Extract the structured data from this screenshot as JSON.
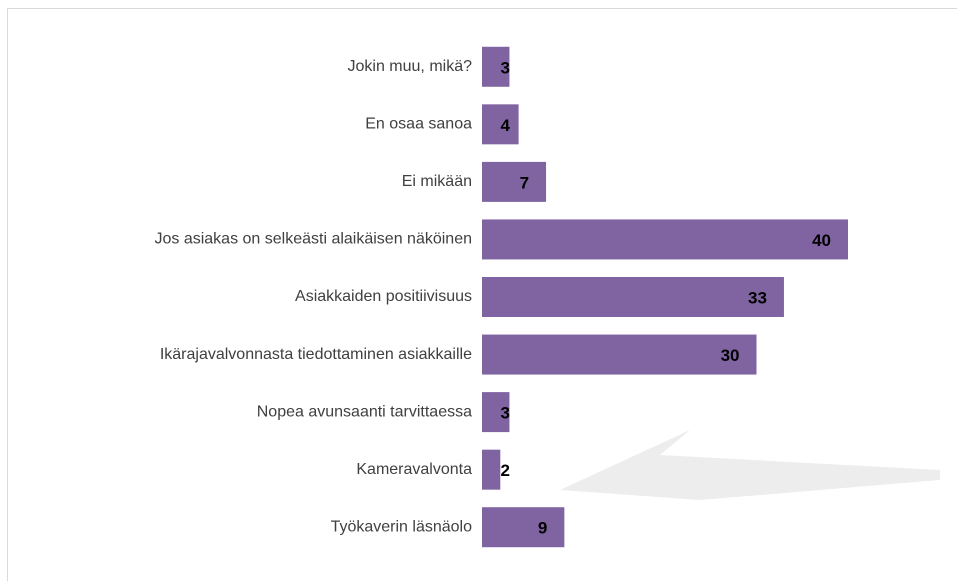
{
  "chart_data": {
    "type": "bar",
    "orientation": "horizontal",
    "categories": [
      "Jokin muu, mikä?",
      "En osaa sanoa",
      "Ei mikään",
      "Jos asiakas on selkeästi alaikäisen näköinen",
      "Asiakkaiden positiivisuus",
      "Ikärajavalvonnasta tiedottaminen asiakkaille",
      "Nopea avunsaanti tarvittaessa",
      "Kameravalvonta",
      "Työkaverin läsnäolo"
    ],
    "values": [
      3,
      4,
      7,
      40,
      33,
      30,
      3,
      2,
      9
    ],
    "color": "#8064a2",
    "xlim": [
      0,
      40
    ]
  }
}
